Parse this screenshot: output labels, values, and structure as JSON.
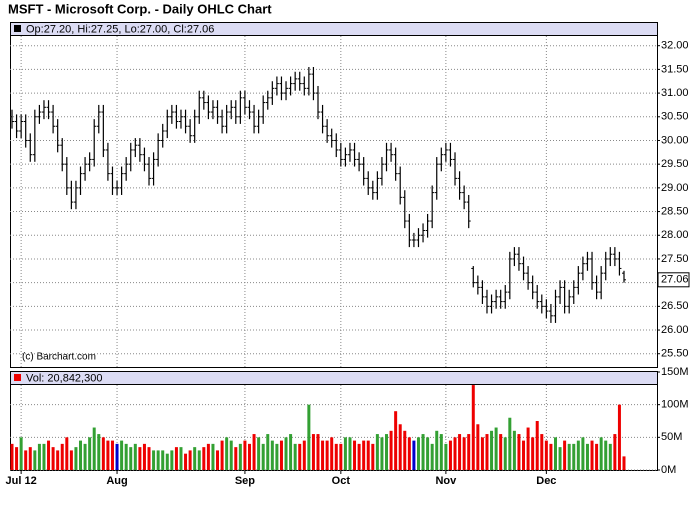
{
  "chart_data": [
    {
      "type": "ohlc",
      "title": "MSFT - Microsoft Corp. - Daily OHLC Chart",
      "info": "Op:27.20, Hi:27.25, Lo:27.00, Cl:27.06",
      "note": "(c) Barchart.com",
      "color": "#000000",
      "grid": true,
      "ylim": [
        25.22,
        32.5
      ],
      "yticks": [
        {
          "value": 32,
          "label": "32.00"
        },
        {
          "value": 31.5,
          "label": "31.50"
        },
        {
          "value": 31,
          "label": "31.00"
        },
        {
          "value": 30.5,
          "label": "30.50"
        },
        {
          "value": 30,
          "label": "30.00"
        },
        {
          "value": 29.5,
          "label": "29.50"
        },
        {
          "value": 29,
          "label": "29.00"
        },
        {
          "value": 28.5,
          "label": "28.50"
        },
        {
          "value": 28,
          "label": "28.00"
        },
        {
          "value": 27.5,
          "label": "27.50"
        },
        {
          "value": 27,
          "label": "27.00"
        },
        {
          "value": 26.5,
          "label": "26.50"
        },
        {
          "value": 26,
          "label": "26.00"
        },
        {
          "value": 25.5,
          "label": "25.50"
        }
      ],
      "open": [
        30.5,
        30.4,
        30.2,
        30.4,
        30.0,
        29.7,
        30.5,
        30.6,
        30.7,
        30.6,
        30.3,
        29.9,
        29.5,
        29.0,
        28.7,
        29.0,
        29.3,
        29.5,
        29.6,
        30.3,
        30.6,
        29.8,
        29.3,
        29.0,
        29.0,
        29.3,
        29.5,
        29.8,
        29.9,
        29.7,
        29.5,
        29.2,
        29.6,
        30.0,
        30.2,
        30.5,
        30.6,
        30.4,
        30.5,
        30.3,
        30.1,
        30.5,
        30.9,
        30.8,
        30.6,
        30.7,
        30.5,
        30.3,
        30.6,
        30.7,
        30.5,
        30.9,
        30.7,
        30.6,
        30.3,
        30.5,
        30.8,
        30.9,
        31.1,
        31.2,
        31.0,
        31.1,
        31.2,
        31.3,
        31.2,
        31.1,
        31.4,
        31.0,
        30.6,
        30.3,
        30.1,
        30.0,
        29.8,
        29.6,
        29.7,
        29.8,
        29.6,
        29.5,
        29.2,
        29.0,
        28.9,
        29.2,
        29.5,
        29.8,
        29.7,
        29.3,
        28.8,
        28.3,
        27.9,
        27.9,
        28.0,
        28.1,
        28.3,
        28.9,
        29.5,
        29.7,
        29.8,
        29.6,
        29.2,
        28.9,
        28.7,
        27.3,
        27.0,
        26.9,
        26.7,
        26.5,
        26.6,
        26.7,
        26.6,
        26.8,
        27.5,
        27.6,
        27.4,
        27.2,
        27.0,
        26.8,
        26.6,
        26.5,
        26.4,
        26.3,
        26.7,
        26.9,
        26.5,
        26.7,
        26.9,
        27.2,
        27.4,
        27.5,
        27.0,
        26.8,
        27.2,
        27.5,
        27.6,
        27.5,
        27.2
      ],
      "high": [
        30.65,
        30.55,
        30.55,
        30.55,
        30.15,
        30.65,
        30.75,
        30.85,
        30.85,
        30.75,
        30.45,
        30.05,
        29.65,
        29.15,
        29.15,
        29.45,
        29.65,
        29.75,
        30.45,
        30.75,
        30.75,
        29.95,
        29.45,
        29.15,
        29.45,
        29.65,
        29.95,
        30.05,
        30.05,
        29.85,
        29.65,
        29.75,
        30.15,
        30.35,
        30.65,
        30.75,
        30.75,
        30.65,
        30.65,
        30.45,
        30.65,
        31.05,
        31.05,
        30.95,
        30.85,
        30.85,
        30.65,
        30.75,
        30.85,
        30.85,
        31.05,
        31.05,
        30.85,
        30.75,
        30.65,
        30.95,
        31.05,
        31.25,
        31.35,
        31.35,
        31.25,
        31.35,
        31.45,
        31.45,
        31.35,
        31.55,
        31.55,
        31.15,
        30.75,
        30.45,
        30.25,
        30.15,
        29.95,
        29.85,
        29.95,
        29.95,
        29.75,
        29.65,
        29.35,
        29.15,
        29.35,
        29.65,
        29.95,
        29.95,
        29.85,
        29.45,
        28.95,
        28.45,
        28.05,
        28.15,
        28.25,
        28.45,
        29.05,
        29.65,
        29.85,
        29.95,
        29.95,
        29.75,
        29.35,
        29.05,
        28.85,
        27.35,
        27.15,
        27.05,
        26.85,
        26.75,
        26.85,
        26.85,
        26.95,
        27.65,
        27.75,
        27.75,
        27.55,
        27.35,
        27.15,
        26.95,
        26.75,
        26.65,
        26.55,
        26.85,
        27.05,
        27.05,
        26.85,
        27.05,
        27.35,
        27.55,
        27.65,
        27.65,
        27.15,
        27.35,
        27.65,
        27.75,
        27.75,
        27.65,
        27.25
      ],
      "low": [
        30.25,
        30.05,
        30.05,
        29.85,
        29.55,
        29.55,
        30.35,
        30.45,
        30.45,
        30.15,
        29.75,
        29.35,
        28.85,
        28.55,
        28.55,
        28.85,
        29.15,
        29.35,
        29.45,
        30.15,
        29.65,
        29.15,
        28.85,
        28.85,
        28.85,
        29.15,
        29.35,
        29.65,
        29.55,
        29.35,
        29.05,
        29.05,
        29.45,
        29.85,
        30.05,
        30.35,
        30.25,
        30.25,
        30.15,
        29.95,
        29.95,
        30.35,
        30.65,
        30.45,
        30.45,
        30.35,
        30.15,
        30.15,
        30.45,
        30.35,
        30.35,
        30.55,
        30.45,
        30.15,
        30.15,
        30.35,
        30.65,
        30.75,
        30.95,
        30.85,
        30.85,
        30.95,
        31.05,
        31.05,
        30.95,
        30.95,
        30.85,
        30.45,
        30.15,
        29.95,
        29.85,
        29.65,
        29.45,
        29.45,
        29.55,
        29.45,
        29.35,
        29.05,
        28.85,
        28.75,
        28.75,
        29.05,
        29.35,
        29.55,
        29.15,
        28.65,
        28.15,
        27.75,
        27.75,
        27.75,
        27.85,
        27.95,
        28.15,
        28.75,
        29.35,
        29.55,
        29.45,
        29.05,
        28.75,
        28.55,
        28.15,
        26.9,
        26.75,
        26.55,
        26.35,
        26.35,
        26.45,
        26.45,
        26.45,
        26.65,
        27.35,
        27.25,
        27.05,
        26.85,
        26.65,
        26.45,
        26.35,
        26.25,
        26.15,
        26.15,
        26.55,
        26.35,
        26.35,
        26.55,
        26.75,
        27.05,
        27.25,
        26.85,
        26.65,
        26.65,
        27.05,
        27.35,
        27.35,
        27.15,
        27.0
      ],
      "close": [
        30.4,
        30.2,
        30.4,
        30.0,
        29.7,
        30.5,
        30.6,
        30.7,
        30.6,
        30.3,
        29.9,
        29.5,
        29.0,
        28.7,
        29.0,
        29.3,
        29.5,
        29.6,
        30.3,
        30.6,
        29.8,
        29.3,
        29.0,
        29.0,
        29.3,
        29.5,
        29.8,
        29.9,
        29.7,
        29.5,
        29.2,
        29.6,
        30.0,
        30.2,
        30.5,
        30.6,
        30.4,
        30.5,
        30.3,
        30.1,
        30.5,
        30.9,
        30.8,
        30.6,
        30.7,
        30.5,
        30.3,
        30.6,
        30.7,
        30.5,
        30.9,
        30.7,
        30.6,
        30.3,
        30.5,
        30.8,
        30.9,
        31.1,
        31.2,
        31.0,
        31.1,
        31.2,
        31.3,
        31.2,
        31.1,
        31.4,
        31.0,
        30.6,
        30.3,
        30.1,
        30.0,
        29.8,
        29.6,
        29.7,
        29.8,
        29.6,
        29.5,
        29.2,
        29.0,
        28.9,
        29.2,
        29.5,
        29.8,
        29.7,
        29.3,
        28.8,
        28.3,
        27.9,
        27.9,
        28.0,
        28.1,
        28.3,
        28.9,
        29.5,
        29.7,
        29.8,
        29.6,
        29.2,
        28.9,
        28.7,
        28.3,
        27.0,
        26.9,
        26.7,
        26.5,
        26.6,
        26.7,
        26.6,
        26.8,
        27.5,
        27.6,
        27.4,
        27.2,
        27.0,
        26.8,
        26.6,
        26.5,
        26.4,
        26.3,
        26.7,
        26.9,
        26.5,
        26.7,
        26.9,
        27.2,
        27.4,
        27.5,
        27.0,
        26.8,
        27.2,
        27.5,
        27.6,
        27.5,
        27.3,
        27.06
      ]
    },
    {
      "type": "bar",
      "info": "Vol: 20,842,300",
      "up_color": "#33a033",
      "down_color": "#ee0000",
      "flat_color": "#0000cc",
      "grid": true,
      "ylim": [
        0,
        150000000
      ],
      "yticks": [
        {
          "value": 150000000,
          "label": "150M"
        },
        {
          "value": 100000000,
          "label": "100M"
        },
        {
          "value": 50000000,
          "label": "50M"
        },
        {
          "value": 0,
          "label": "0M"
        }
      ],
      "xticks": [
        {
          "value": 2,
          "label": "Jul 12"
        },
        {
          "value": 23,
          "label": "Aug"
        },
        {
          "value": 51,
          "label": "Sep"
        },
        {
          "value": 72,
          "label": "Oct"
        },
        {
          "value": 95,
          "label": "Nov"
        },
        {
          "value": 117,
          "label": "Dec"
        }
      ],
      "values": [
        40000000,
        35000000,
        50000000,
        30000000,
        35000000,
        30000000,
        40000000,
        40000000,
        45000000,
        35000000,
        30000000,
        40000000,
        50000000,
        30000000,
        35000000,
        45000000,
        40000000,
        50000000,
        65000000,
        55000000,
        50000000,
        45000000,
        45000000,
        40000000,
        45000000,
        40000000,
        35000000,
        40000000,
        35000000,
        40000000,
        35000000,
        30000000,
        30000000,
        30000000,
        25000000,
        30000000,
        35000000,
        35000000,
        25000000,
        30000000,
        35000000,
        30000000,
        35000000,
        40000000,
        40000000,
        30000000,
        45000000,
        50000000,
        45000000,
        35000000,
        40000000,
        45000000,
        40000000,
        55000000,
        50000000,
        40000000,
        55000000,
        45000000,
        40000000,
        45000000,
        50000000,
        55000000,
        40000000,
        40000000,
        45000000,
        100000000,
        55000000,
        55000000,
        45000000,
        45000000,
        50000000,
        40000000,
        40000000,
        50000000,
        50000000,
        45000000,
        40000000,
        45000000,
        45000000,
        40000000,
        55000000,
        50000000,
        55000000,
        60000000,
        90000000,
        70000000,
        60000000,
        50000000,
        45000000,
        50000000,
        55000000,
        50000000,
        40000000,
        60000000,
        55000000,
        40000000,
        45000000,
        50000000,
        55000000,
        50000000,
        55000000,
        130000000,
        70000000,
        50000000,
        55000000,
        60000000,
        65000000,
        55000000,
        50000000,
        80000000,
        60000000,
        55000000,
        45000000,
        65000000,
        50000000,
        75000000,
        55000000,
        45000000,
        40000000,
        50000000,
        35000000,
        45000000,
        40000000,
        40000000,
        45000000,
        50000000,
        40000000,
        45000000,
        40000000,
        50000000,
        45000000,
        40000000,
        55000000,
        100000000,
        20842300
      ]
    }
  ]
}
